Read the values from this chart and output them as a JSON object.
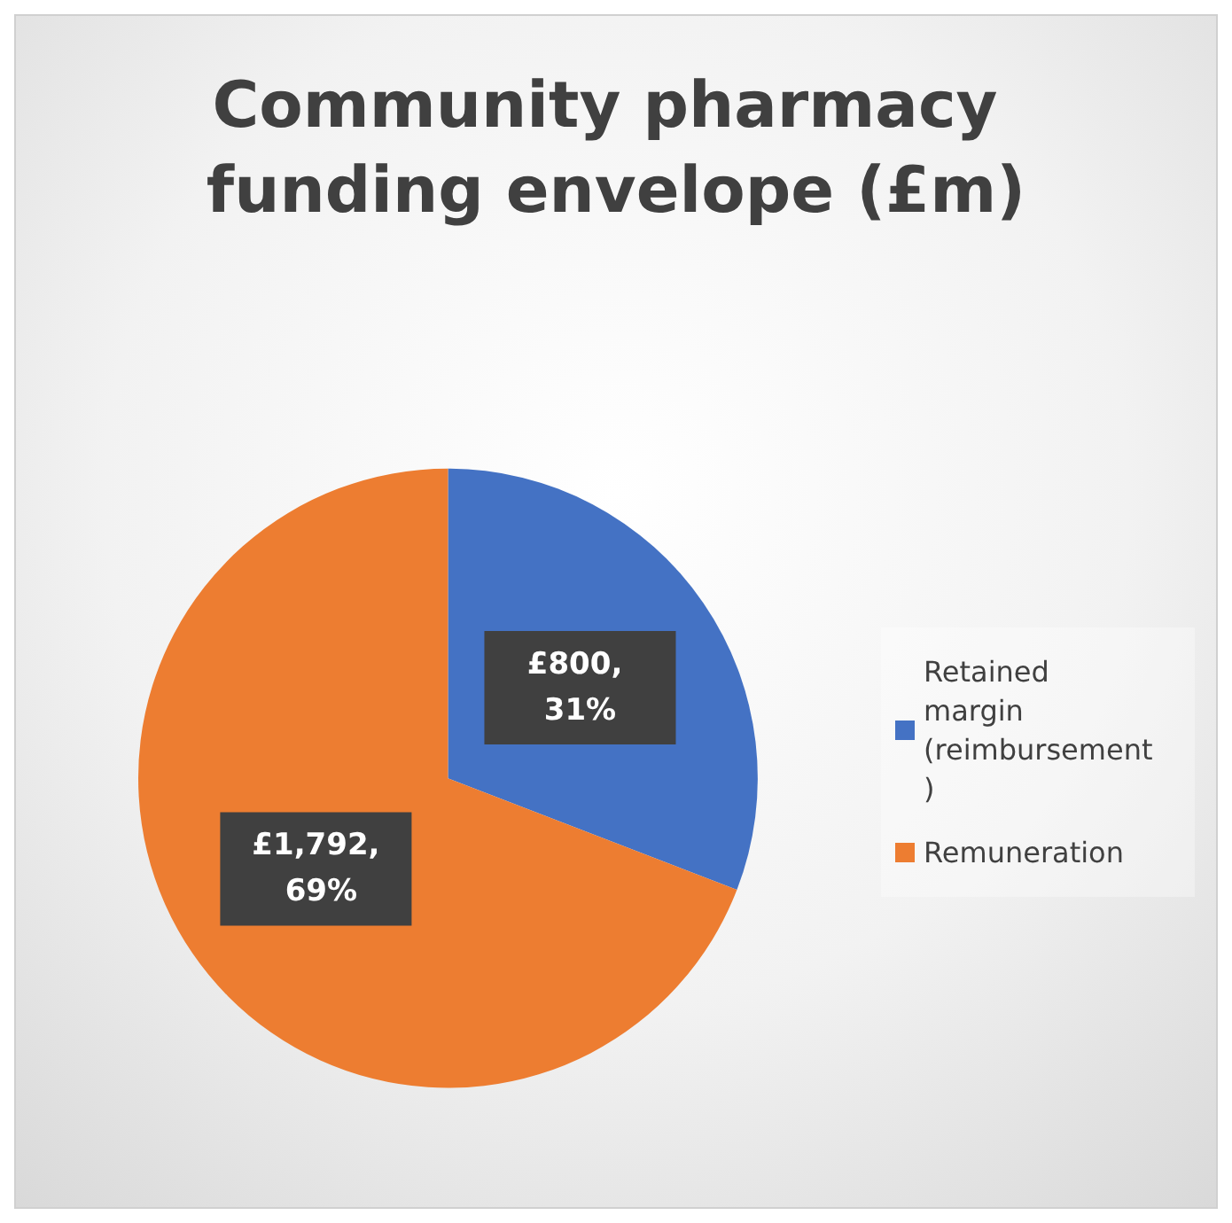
{
  "chart_data": {
    "type": "pie",
    "title": "Community pharmacy funding envelope (£m)",
    "categories": [
      "Retained margin (reimbursement)",
      "Remuneration"
    ],
    "values": [
      800,
      1792
    ],
    "colors": [
      "#4472c4",
      "#ed7d31"
    ],
    "value_labels": [
      "£800, 31%",
      "£1,792, 69%"
    ],
    "legend": "right"
  }
}
